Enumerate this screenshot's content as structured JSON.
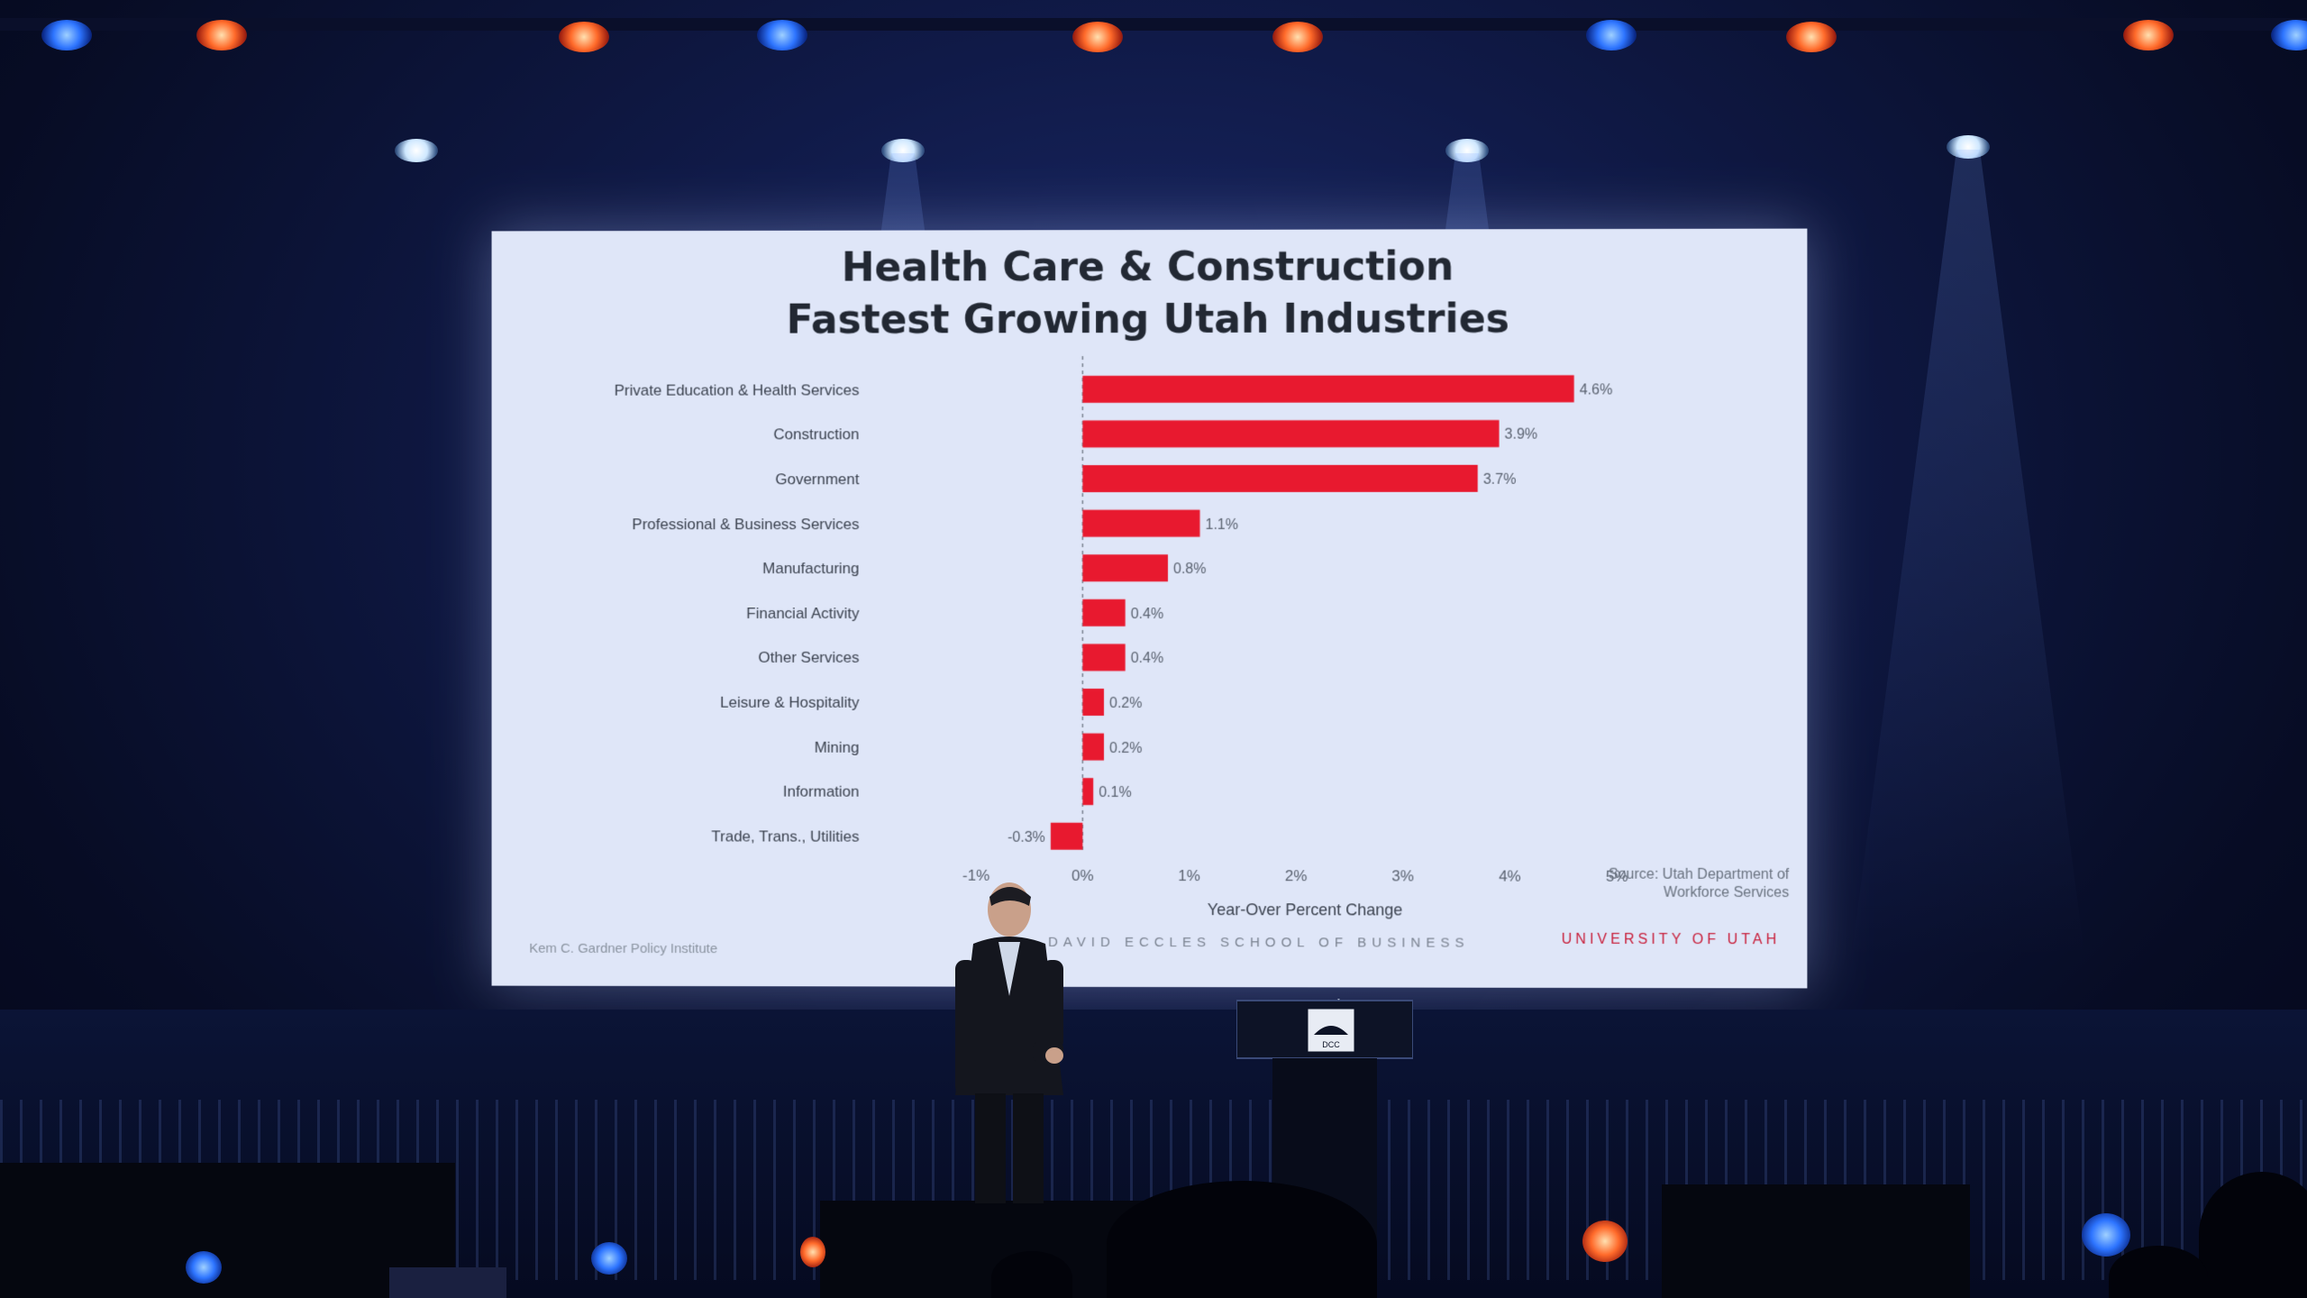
{
  "colors": {
    "bar": "#e8192f",
    "screen_bg": "#dfe6f8",
    "text": "#3c4350"
  },
  "chart_data": {
    "type": "bar",
    "orientation": "horizontal",
    "title": "Health Care & Construction",
    "subtitle": "Fastest Growing Utah Industries",
    "xlabel": "Year-Over Percent Change",
    "ylabel": "",
    "xlim": [
      -1,
      5
    ],
    "xticks": [
      "-1%",
      "0%",
      "1%",
      "2%",
      "3%",
      "4%",
      "5%"
    ],
    "grid": false,
    "categories": [
      "Private Education & Health Services",
      "Construction",
      "Government",
      "Professional & Business Services",
      "Manufacturing",
      "Financial Activity",
      "Other Services",
      "Leisure & Hospitality",
      "Mining",
      "Information",
      "Trade, Trans., Utilities"
    ],
    "values": [
      4.6,
      3.9,
      3.7,
      1.1,
      0.8,
      0.4,
      0.4,
      0.2,
      0.2,
      0.1,
      -0.3
    ],
    "value_labels": [
      "4.6%",
      "3.9%",
      "3.7%",
      "1.1%",
      "0.8%",
      "0.4%",
      "0.4%",
      "0.2%",
      "0.2%",
      "0.1%",
      "-0.3%"
    ],
    "source": "Source: Utah Department of Workforce Services"
  },
  "footer": {
    "left": "Kem C. Gardner Policy Institute",
    "middle": "DAVID ECCLES SCHOOL OF BUSINESS",
    "right": "UNIVERSITY OF UTAH"
  },
  "podium": {
    "logo_text": "DCC"
  }
}
